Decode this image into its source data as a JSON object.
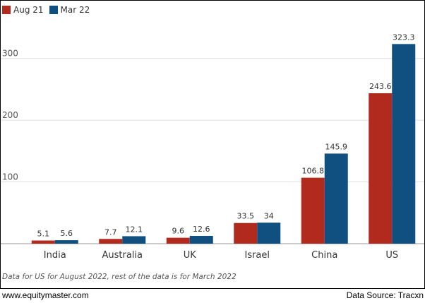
{
  "chart_data": {
    "type": "bar",
    "categories": [
      "India",
      "Australia",
      "UK",
      "Israel",
      "China",
      "US"
    ],
    "series": [
      {
        "name": "Aug 21",
        "values": [
          5.1,
          7.7,
          9.6,
          33.5,
          106.8,
          243.6
        ],
        "labels": [
          "5.1",
          "7.7",
          "9.6",
          "33.5",
          "106.8",
          "243.6"
        ],
        "color": "#b22a1e"
      },
      {
        "name": "Mar 22",
        "values": [
          5.6,
          12.1,
          12.6,
          34,
          145.9,
          323.3
        ],
        "labels": [
          "5.6",
          "12.1",
          "12.6",
          "34",
          "145.9",
          "323.3"
        ],
        "color": "#0f5080"
      }
    ],
    "yticks": [
      "100",
      "200",
      "300"
    ],
    "ylim": [
      0,
      350
    ],
    "grid": true,
    "legend_position": "top-left"
  },
  "footnote": "Data for US for August 2022, rest of the data is for March 2022",
  "footer": {
    "site": "www.equitymaster.com",
    "source": "Data Source: Tracxn"
  }
}
